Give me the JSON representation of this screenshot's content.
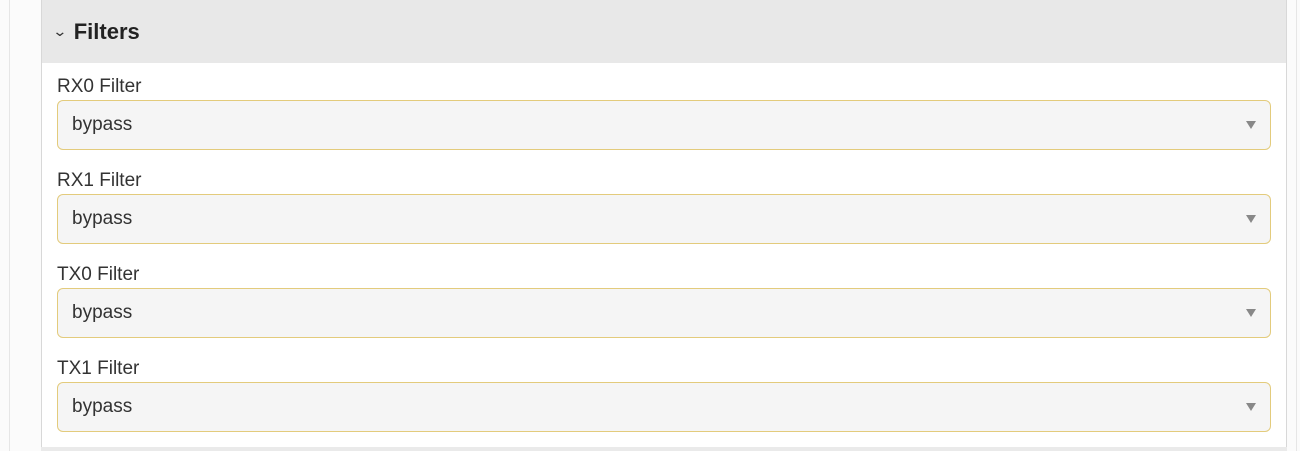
{
  "section": {
    "title": "Filters",
    "expanded": true
  },
  "filters": [
    {
      "label": "RX0 Filter",
      "value": "bypass"
    },
    {
      "label": "RX1 Filter",
      "value": "bypass"
    },
    {
      "label": "TX0 Filter",
      "value": "bypass"
    },
    {
      "label": "TX1 Filter",
      "value": "bypass"
    }
  ]
}
